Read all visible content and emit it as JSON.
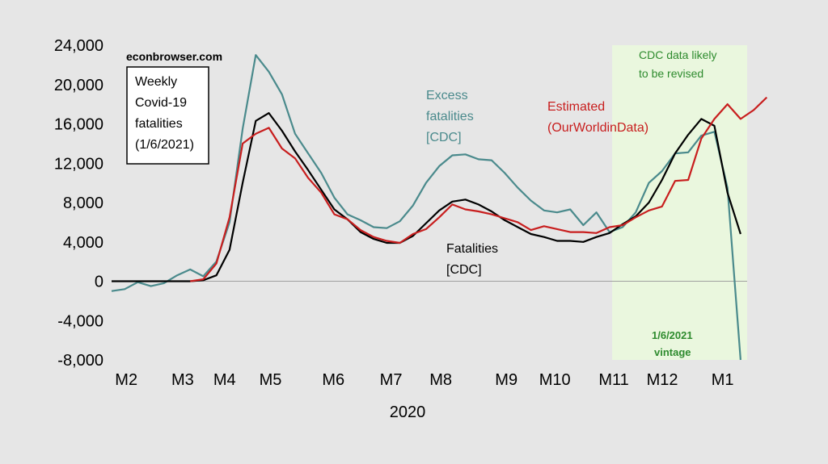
{
  "chart_data": {
    "type": "line",
    "source": "econbrowser.com",
    "title_box": [
      "Weekly",
      "Covid-19",
      "fatalities",
      "(1/6/2021)"
    ],
    "xlabel": "2020",
    "x_ticks": [
      {
        "label": "M2",
        "x": 0
      },
      {
        "label": "M3",
        "x": 4.3
      },
      {
        "label": "M4",
        "x": 7.5
      },
      {
        "label": "M5",
        "x": 11
      },
      {
        "label": "M6",
        "x": 15.8
      },
      {
        "label": "M7",
        "x": 20.2
      },
      {
        "label": "M8",
        "x": 24
      },
      {
        "label": "M9",
        "x": 29
      },
      {
        "label": "M10",
        "x": 32.7
      },
      {
        "label": "M11",
        "x": 37.2
      },
      {
        "label": "M12",
        "x": 40.9
      },
      {
        "label": "M1",
        "x": 45.5
      }
    ],
    "y_ticks": [
      {
        "label": "24,000",
        "v": 24000
      },
      {
        "label": "20,000",
        "v": 20000
      },
      {
        "label": "16,000",
        "v": 16000
      },
      {
        "label": "12,000",
        "v": 12000
      },
      {
        "label": "8,000",
        "v": 8000
      },
      {
        "label": "4,000",
        "v": 4000
      },
      {
        "label": "0",
        "v": 0
      },
      {
        "label": "-4,000",
        "v": -4000
      },
      {
        "label": "-8,000",
        "v": -8000
      }
    ],
    "ylim": [
      -8000,
      24000
    ],
    "xlim": [
      -1,
      47.5
    ],
    "shade": {
      "x_start": 37.2,
      "x_end": 47.5,
      "color": "#eaf7de"
    },
    "shade_label": [
      "CDC data likely",
      "to be revised"
    ],
    "vintage_label": [
      "1/6/2021",
      "vintage"
    ],
    "series": [
      {
        "name": "Excess fatalities [CDC]",
        "label_lines": [
          "Excess",
          "fatalities",
          "[CDC]"
        ],
        "color": "#4a8a8c",
        "points": [
          [
            -1,
            -1000
          ],
          [
            0,
            -800
          ],
          [
            1,
            -100
          ],
          [
            2,
            -500
          ],
          [
            3,
            -200
          ],
          [
            4,
            600
          ],
          [
            5,
            1200
          ],
          [
            6,
            500
          ],
          [
            7,
            2000
          ],
          [
            8,
            6000
          ],
          [
            9,
            15500
          ],
          [
            10,
            23000
          ],
          [
            11,
            21300
          ],
          [
            12,
            19000
          ],
          [
            13,
            15000
          ],
          [
            14,
            13000
          ],
          [
            15,
            11000
          ],
          [
            16,
            8500
          ],
          [
            17,
            6800
          ],
          [
            18,
            6200
          ],
          [
            19,
            5500
          ],
          [
            20,
            5400
          ],
          [
            21,
            6100
          ],
          [
            22,
            7700
          ],
          [
            23,
            10000
          ],
          [
            24,
            11700
          ],
          [
            25,
            12800
          ],
          [
            26,
            12900
          ],
          [
            27,
            12400
          ],
          [
            28,
            12300
          ],
          [
            29,
            11000
          ],
          [
            30,
            9500
          ],
          [
            31,
            8200
          ],
          [
            32,
            7200
          ],
          [
            33,
            7000
          ],
          [
            34,
            7300
          ],
          [
            35,
            5700
          ],
          [
            36,
            7000
          ],
          [
            37,
            5000
          ],
          [
            38,
            5500
          ],
          [
            39,
            7000
          ],
          [
            40,
            10000
          ],
          [
            41,
            11200
          ],
          [
            42,
            13000
          ],
          [
            43,
            13100
          ],
          [
            44,
            14800
          ],
          [
            45,
            15200
          ],
          [
            46,
            9500
          ],
          [
            47,
            -8000
          ]
        ]
      },
      {
        "name": "Fatalities [CDC]",
        "label_lines": [
          "Fatalities",
          "[CDC]"
        ],
        "color": "#000000",
        "points": [
          [
            -1,
            0
          ],
          [
            0,
            0
          ],
          [
            1,
            0
          ],
          [
            2,
            0
          ],
          [
            3,
            0
          ],
          [
            4,
            0
          ],
          [
            5,
            0
          ],
          [
            6,
            100
          ],
          [
            7,
            600
          ],
          [
            8,
            3200
          ],
          [
            9,
            10000
          ],
          [
            10,
            16300
          ],
          [
            11,
            17100
          ],
          [
            12,
            15300
          ],
          [
            13,
            13200
          ],
          [
            14,
            11300
          ],
          [
            15,
            9300
          ],
          [
            16,
            7300
          ],
          [
            17,
            6300
          ],
          [
            18,
            5000
          ],
          [
            19,
            4300
          ],
          [
            20,
            3900
          ],
          [
            21,
            3900
          ],
          [
            22,
            4600
          ],
          [
            23,
            5900
          ],
          [
            24,
            7200
          ],
          [
            25,
            8100
          ],
          [
            26,
            8300
          ],
          [
            27,
            7800
          ],
          [
            28,
            7100
          ],
          [
            29,
            6200
          ],
          [
            30,
            5500
          ],
          [
            31,
            4800
          ],
          [
            32,
            4500
          ],
          [
            33,
            4100
          ],
          [
            34,
            4100
          ],
          [
            35,
            4000
          ],
          [
            36,
            4500
          ],
          [
            37,
            4900
          ],
          [
            38,
            5800
          ],
          [
            39,
            6600
          ],
          [
            40,
            8000
          ],
          [
            41,
            10300
          ],
          [
            42,
            13000
          ],
          [
            43,
            14900
          ],
          [
            44,
            16500
          ],
          [
            45,
            15800
          ],
          [
            46,
            9000
          ],
          [
            47,
            4800
          ]
        ]
      },
      {
        "name": "Estimated (OurWorldinData)",
        "label_lines": [
          "Estimated",
          "(OurWorldinData)"
        ],
        "color": "#c81e1e",
        "points": [
          [
            5,
            0
          ],
          [
            6,
            200
          ],
          [
            7,
            1800
          ],
          [
            8,
            6500
          ],
          [
            9,
            14000
          ],
          [
            10,
            15000
          ],
          [
            11,
            15600
          ],
          [
            12,
            13500
          ],
          [
            13,
            12500
          ],
          [
            14,
            10500
          ],
          [
            15,
            9000
          ],
          [
            16,
            6800
          ],
          [
            17,
            6300
          ],
          [
            18,
            5200
          ],
          [
            19,
            4500
          ],
          [
            20,
            4100
          ],
          [
            21,
            3900
          ],
          [
            22,
            4800
          ],
          [
            23,
            5300
          ],
          [
            24,
            6500
          ],
          [
            25,
            7800
          ],
          [
            26,
            7300
          ],
          [
            27,
            7100
          ],
          [
            28,
            6800
          ],
          [
            29,
            6400
          ],
          [
            30,
            6000
          ],
          [
            31,
            5200
          ],
          [
            32,
            5600
          ],
          [
            33,
            5300
          ],
          [
            34,
            5000
          ],
          [
            35,
            5000
          ],
          [
            36,
            4900
          ],
          [
            37,
            5500
          ],
          [
            38,
            5700
          ],
          [
            39,
            6500
          ],
          [
            40,
            7200
          ],
          [
            41,
            7600
          ],
          [
            42,
            10200
          ],
          [
            43,
            10300
          ],
          [
            44,
            14500
          ],
          [
            45,
            16500
          ],
          [
            46,
            18000
          ],
          [
            47,
            16500
          ],
          [
            48,
            17400
          ],
          [
            49,
            18700
          ]
        ]
      }
    ]
  }
}
